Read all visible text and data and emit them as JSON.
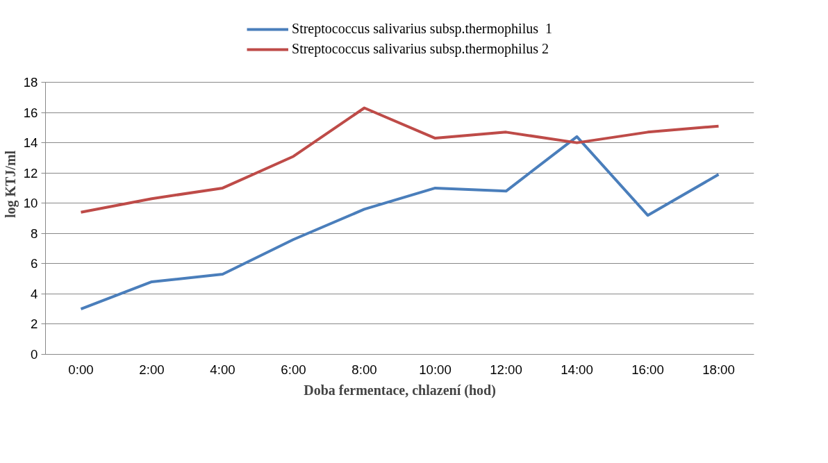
{
  "chart_data": {
    "type": "line",
    "xlabel": "Doba fermentace, chlazení (hod)",
    "ylabel": "log KTJ/ml",
    "categories": [
      "0:00",
      "2:00",
      "4:00",
      "6:00",
      "8:00",
      "10:00",
      "12:00",
      "14:00",
      "16:00",
      "18:00"
    ],
    "series": [
      {
        "name": "Streptococcus salivarius subsp.thermophilus  1",
        "color": "#4a7ebb",
        "values": [
          3.0,
          4.8,
          5.3,
          7.6,
          9.6,
          11.0,
          10.8,
          14.4,
          9.2,
          11.9
        ]
      },
      {
        "name": "Streptococcus salivarius subsp.thermophilus 2",
        "color": "#be4b48",
        "values": [
          9.4,
          10.3,
          11.0,
          13.1,
          16.3,
          14.3,
          14.7,
          14.0,
          14.7,
          15.1
        ]
      }
    ],
    "ylim": [
      0,
      18
    ],
    "yticks": [
      0,
      2,
      4,
      6,
      8,
      10,
      12,
      14,
      16,
      18
    ],
    "grid": "y",
    "legend": "top",
    "marker": "none",
    "line_style": "solid"
  }
}
